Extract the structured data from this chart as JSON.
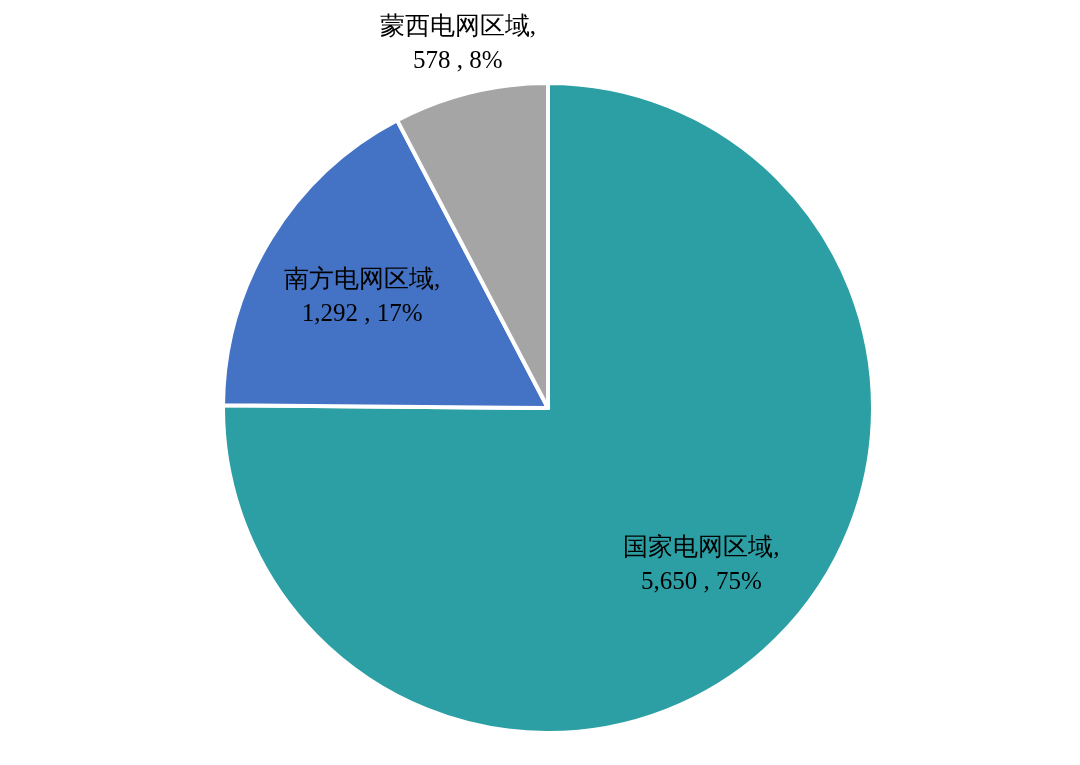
{
  "chart_data": {
    "type": "pie",
    "categories": [
      "国家电网区域",
      "南方电网区域",
      "蒙西电网区域"
    ],
    "values": [
      5650,
      1292,
      578
    ],
    "colors": [
      "#2c9fa5",
      "#4472c4",
      "#a5a5a5"
    ],
    "value_labels": [
      ",\n5,650 , 75%",
      ",\n1,292 , 17%",
      ",\n578 , 8%"
    ]
  }
}
